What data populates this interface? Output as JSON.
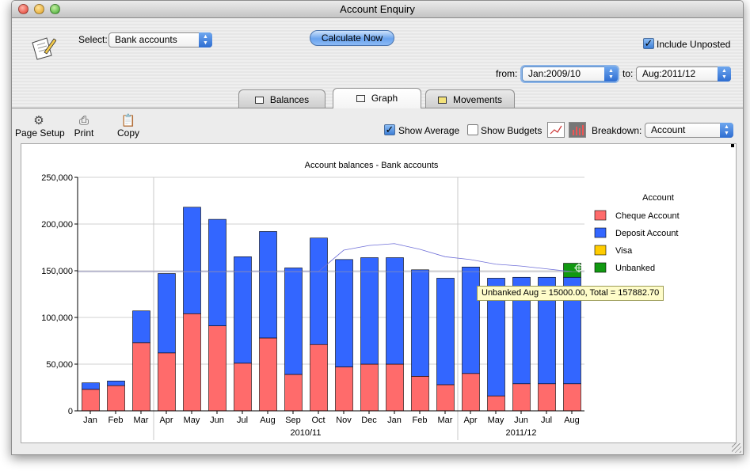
{
  "window": {
    "title": "Account Enquiry"
  },
  "top": {
    "select_label": "Select:",
    "select_value": "Bank accounts",
    "calculate_label": "Calculate Now",
    "include_unposted_label": "Include Unposted",
    "include_unposted_checked": true,
    "from_label": "from:",
    "from_value": "Jan:2009/10",
    "to_label": "to:",
    "to_value": "Aug:2011/12"
  },
  "tabs": [
    {
      "label": "Balances",
      "icon": "table-icon"
    },
    {
      "label": "Graph",
      "icon": "graph-icon",
      "active": true
    },
    {
      "label": "Movements",
      "icon": "movements-icon"
    }
  ],
  "toolbar": {
    "page_setup_label": "Page Setup",
    "print_label": "Print",
    "copy_label": "Copy",
    "show_average_label": "Show Average",
    "show_average_checked": true,
    "show_budgets_label": "Show Budgets",
    "show_budgets_checked": false,
    "breakdown_label": "Breakdown:",
    "breakdown_value": "Account"
  },
  "tooltip": "Unbanked Aug = 15000.00, Total = 157882.70",
  "chart_data": {
    "type": "bar",
    "stacked": true,
    "title": "Account balances - Bank accounts",
    "categories": [
      "Jan",
      "Feb",
      "Mar",
      "Apr",
      "May",
      "Jun",
      "Jul",
      "Aug",
      "Sep",
      "Oct",
      "Nov",
      "Dec",
      "Jan",
      "Feb",
      "Mar",
      "Apr",
      "May",
      "Jun",
      "Jul",
      "Aug"
    ],
    "groups": [
      {
        "label": "2010/11",
        "start": 3,
        "end": 14
      },
      {
        "label": "2011/12",
        "start": 15,
        "end": 19
      }
    ],
    "series": [
      {
        "name": "Cheque Account",
        "color": "#ff6b6b",
        "values": [
          23000,
          27000,
          73000,
          62000,
          104000,
          91000,
          51000,
          78000,
          39000,
          71000,
          47000,
          50000,
          50000,
          37000,
          28000,
          40000,
          16000,
          29000,
          29000,
          29000
        ]
      },
      {
        "name": "Deposit Account",
        "color": "#3366ff",
        "values": [
          7000,
          5000,
          34000,
          85000,
          114000,
          114000,
          114000,
          114000,
          114000,
          114000,
          115000,
          114000,
          114000,
          114000,
          114000,
          114000,
          126000,
          114000,
          114000,
          114000
        ]
      },
      {
        "name": "Visa",
        "color": "#ffcc00",
        "values": [
          0,
          0,
          0,
          0,
          0,
          0,
          0,
          0,
          0,
          0,
          0,
          0,
          0,
          0,
          0,
          0,
          0,
          0,
          0,
          0
        ]
      },
      {
        "name": "Unbanked",
        "color": "#119911",
        "values": [
          0,
          0,
          0,
          0,
          0,
          0,
          0,
          0,
          0,
          0,
          0,
          0,
          0,
          0,
          0,
          0,
          0,
          0,
          0,
          15000
        ]
      }
    ],
    "average": [
      149000,
      149000,
      149000,
      149000,
      149000,
      149000,
      149000,
      149000,
      149000,
      149000,
      172000,
      177000,
      179000,
      173000,
      165000,
      162000,
      157000,
      155000,
      152000,
      149000
    ],
    "legend_title": "Account",
    "legend_position": "right",
    "ylim": [
      0,
      250000
    ],
    "yticks": [
      "0",
      "50,000",
      "100,000",
      "150,000",
      "200,000",
      "250,000"
    ],
    "ytick_values": [
      0,
      50000,
      100000,
      150000,
      200000,
      250000
    ],
    "grid": true
  }
}
